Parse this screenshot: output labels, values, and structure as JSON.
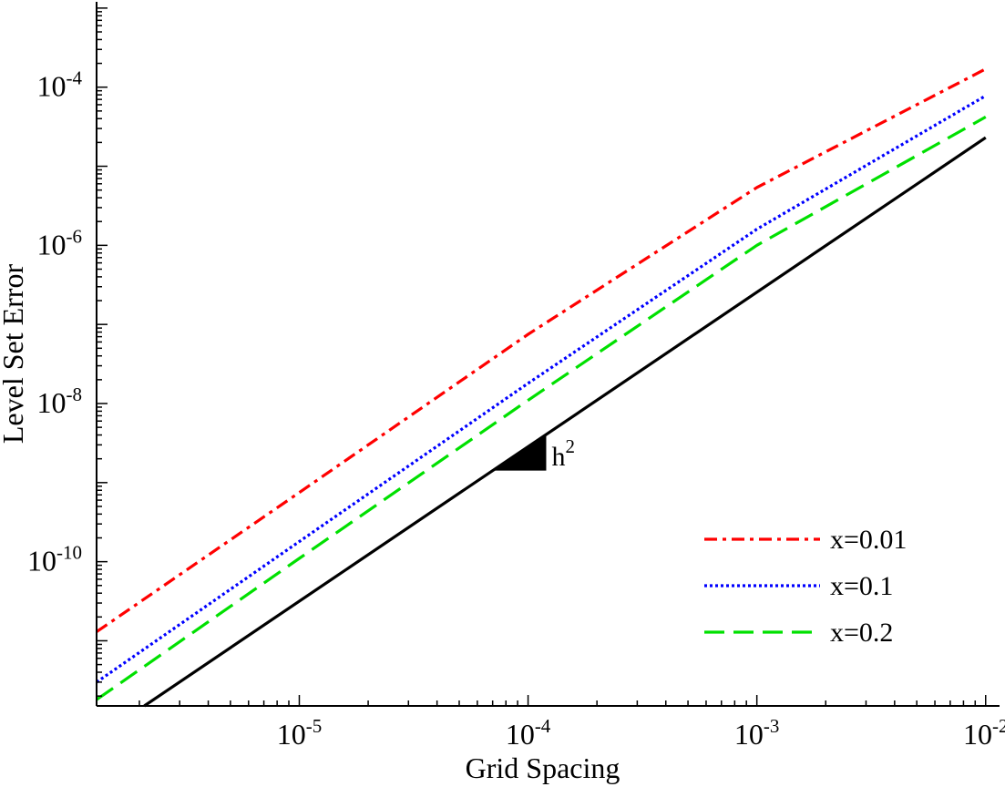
{
  "chart_data": {
    "type": "line",
    "title": "",
    "xlabel": "Grid Spacing",
    "ylabel": "Level Set Error",
    "xscale": "log",
    "yscale": "log",
    "xlim": [
      1.3e-06,
      0.0115
    ],
    "ylim": [
      1.5e-12,
      0.0012
    ],
    "grid": false,
    "legend_position": "bottom-right",
    "x_ticks": [
      {
        "value": 1e-05,
        "base": "10",
        "exp": "-5"
      },
      {
        "value": 0.0001,
        "base": "10",
        "exp": "-4"
      },
      {
        "value": 0.001,
        "base": "10",
        "exp": "-3"
      },
      {
        "value": 0.01,
        "base": "10",
        "exp": "-2"
      }
    ],
    "y_ticks": [
      {
        "value": 1e-10,
        "base": "10",
        "exp": "-10"
      },
      {
        "value": 1e-08,
        "base": "10",
        "exp": "-8"
      },
      {
        "value": 1e-06,
        "base": "10",
        "exp": "-6"
      },
      {
        "value": 0.0001,
        "base": "10",
        "exp": "-4"
      }
    ],
    "series": [
      {
        "name": "x=0.01",
        "color": "#ff0000",
        "dash": "dashdot",
        "x": [
          1.3e-06,
          1e-05,
          0.0001,
          0.001,
          0.01
        ],
        "y": [
          1.3e-11,
          7.5e-10,
          7.5e-08,
          5.4e-06,
          0.00017
        ]
      },
      {
        "name": "x=0.1",
        "color": "#0000ff",
        "dash": "dotted",
        "x": [
          1.3e-06,
          1e-05,
          0.0001,
          0.001,
          0.01
        ],
        "y": [
          3e-12,
          1.8e-10,
          1.8e-08,
          1.6e-06,
          7.8e-05
        ]
      },
      {
        "name": "x=0.2",
        "color": "#00e000",
        "dash": "dashed",
        "x": [
          1.3e-06,
          1e-05,
          0.0001,
          0.001,
          0.01
        ],
        "y": [
          1.8e-12,
          1.1e-10,
          1.1e-08,
          1e-06,
          4.2e-05
        ]
      },
      {
        "name": "reference h^2",
        "color": "#000000",
        "dash": "solid",
        "in_legend": false,
        "x": [
          2.1e-06,
          0.01
        ],
        "y": [
          1.5e-12,
          2.3e-05
        ]
      }
    ],
    "annotations": [
      {
        "text": "h",
        "superscript": "2",
        "x0": 7e-05,
        "x1": 0.00012,
        "note": "slope triangle"
      }
    ]
  }
}
